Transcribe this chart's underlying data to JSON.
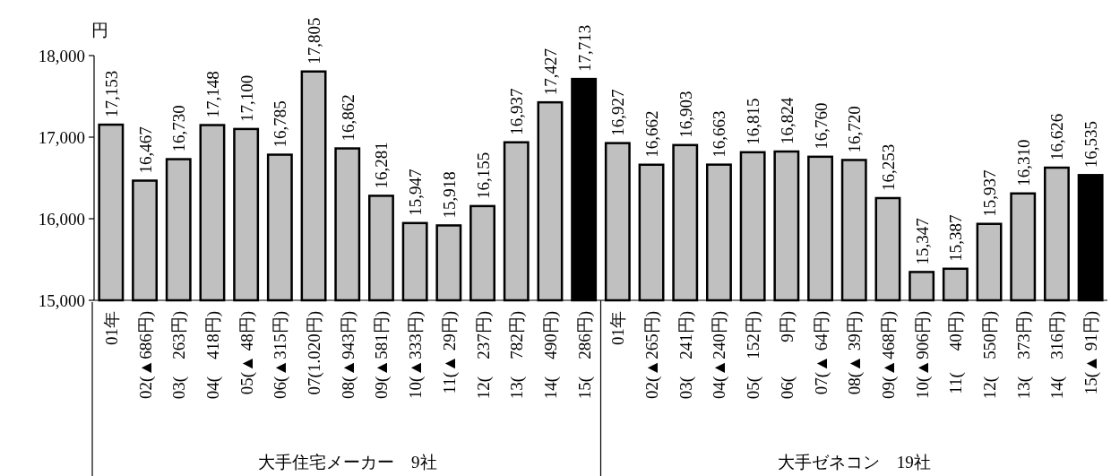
{
  "chart_data": {
    "type": "bar",
    "ylabel": "円",
    "categories": [
      "01年",
      "02(▲686円)",
      "03(　263円)",
      "04(　418円)",
      "05(▲ 48円)",
      "06(▲315円)",
      "07(1.020円)",
      "08(▲943円)",
      "09(▲581円)",
      "10(▲333円)",
      "11(▲ 29円)",
      "12(　237円)",
      "13(　782円)",
      "14(　490円)",
      "15(　286円)",
      "01年",
      "02(▲265円)",
      "03(　241円)",
      "04(▲240円)",
      "05(　152円)",
      "06(　　9円)",
      "07(▲ 64円)",
      "08(▲ 39円)",
      "09(▲468円)",
      "10(▲906円)",
      "11(　 40円)",
      "12(　550円)",
      "13(　373円)",
      "14(　316円)",
      "15(▲ 91円)"
    ],
    "values": [
      17153,
      16467,
      16730,
      17148,
      17100,
      16785,
      17805,
      16862,
      16281,
      15947,
      15918,
      16155,
      16937,
      17427,
      17713,
      16927,
      16662,
      16903,
      16663,
      16815,
      16824,
      16760,
      16720,
      16253,
      15347,
      15387,
      15937,
      16310,
      16626,
      16535
    ],
    "colors": [
      "#c0c0c0",
      "#c0c0c0",
      "#c0c0c0",
      "#c0c0c0",
      "#c0c0c0",
      "#c0c0c0",
      "#c0c0c0",
      "#c0c0c0",
      "#c0c0c0",
      "#c0c0c0",
      "#c0c0c0",
      "#c0c0c0",
      "#c0c0c0",
      "#c0c0c0",
      "#000000",
      "#c0c0c0",
      "#c0c0c0",
      "#c0c0c0",
      "#c0c0c0",
      "#c0c0c0",
      "#c0c0c0",
      "#c0c0c0",
      "#c0c0c0",
      "#c0c0c0",
      "#c0c0c0",
      "#c0c0c0",
      "#c0c0c0",
      "#c0c0c0",
      "#c0c0c0",
      "#000000"
    ],
    "ylim": [
      15000,
      18000
    ],
    "yticks": [
      {
        "value": 15000,
        "label": "15,000"
      },
      {
        "value": 16000,
        "label": "16,000"
      },
      {
        "value": 17000,
        "label": "17,000"
      },
      {
        "value": 18000,
        "label": "18,000"
      }
    ],
    "value_labels": [
      "17,153",
      "16,467",
      "16,730",
      "17,148",
      "17,100",
      "16,785",
      "17,805",
      "16,862",
      "16,281",
      "15,947",
      "15,918",
      "16,155",
      "16,937",
      "17,427",
      "17,713",
      "16,927",
      "16,662",
      "16,903",
      "16,663",
      "16,815",
      "16,824",
      "16,760",
      "16,720",
      "16,253",
      "15,347",
      "15,387",
      "15,937",
      "16,310",
      "16,626",
      "16,535"
    ],
    "annotations": [
      "大手住宅メーカー　9社",
      "大手ゼネコン　19社"
    ]
  }
}
